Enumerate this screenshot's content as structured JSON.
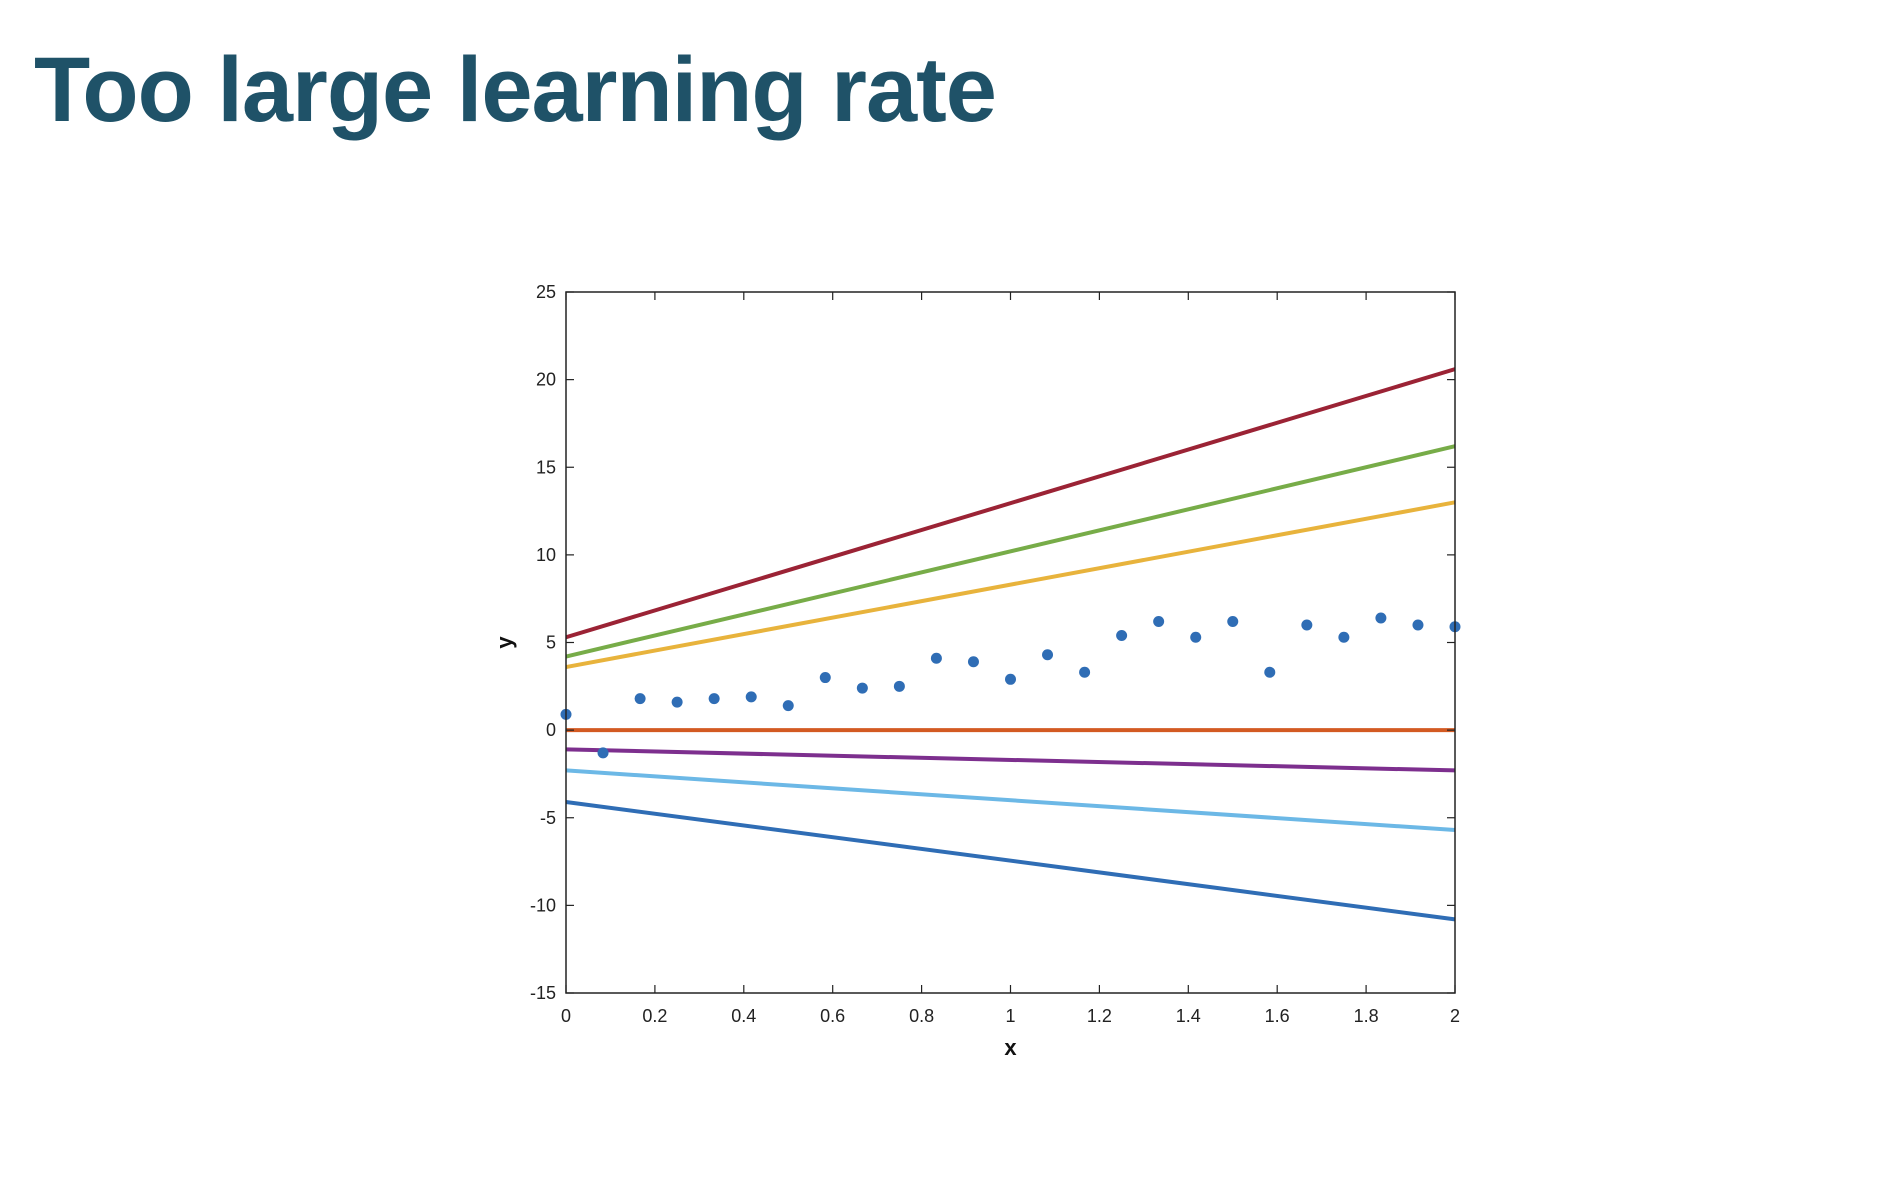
{
  "slide": {
    "title": "Too large learning rate"
  },
  "chart_data": {
    "type": "scatter",
    "xlabel": "x",
    "ylabel": "y",
    "xlim": [
      0,
      2
    ],
    "ylim": [
      -15,
      25
    ],
    "xticks": [
      0,
      0.2,
      0.4,
      0.6,
      0.8,
      1,
      1.2,
      1.4,
      1.6,
      1.8,
      2
    ],
    "yticks": [
      -15,
      -10,
      -5,
      0,
      5,
      10,
      15,
      20,
      25
    ],
    "grid": false,
    "points": {
      "color": "#2f6db5",
      "x": [
        0,
        0.0833,
        0.1667,
        0.25,
        0.3333,
        0.4167,
        0.5,
        0.5833,
        0.6667,
        0.75,
        0.8333,
        0.9167,
        1.0,
        1.0833,
        1.1667,
        1.25,
        1.3333,
        1.4167,
        1.5,
        1.5833,
        1.6667,
        1.75,
        1.8333,
        1.9167,
        2.0
      ],
      "y": [
        0.9,
        -1.3,
        1.8,
        1.6,
        1.8,
        1.9,
        1.4,
        3.0,
        2.4,
        2.5,
        4.1,
        3.9,
        2.9,
        4.3,
        3.3,
        5.4,
        6.2,
        5.3,
        6.2,
        3.3,
        6.0,
        5.3,
        6.4,
        6.0,
        5.9
      ]
    },
    "lines": [
      {
        "x": [
          0,
          2
        ],
        "y": [
          5.3,
          20.6
        ],
        "color": "#9b2335"
      },
      {
        "x": [
          0,
          2
        ],
        "y": [
          4.2,
          16.2
        ],
        "color": "#77ac48"
      },
      {
        "x": [
          0,
          2
        ],
        "y": [
          3.6,
          13.0
        ],
        "color": "#e8b33c"
      },
      {
        "x": [
          0,
          2
        ],
        "y": [
          0,
          0
        ],
        "color": "#d35a22"
      },
      {
        "x": [
          0,
          2
        ],
        "y": [
          -1.1,
          -2.3
        ],
        "color": "#7d2f8e"
      },
      {
        "x": [
          0,
          2
        ],
        "y": [
          -2.3,
          -5.7
        ],
        "color": "#6cb8e6"
      },
      {
        "x": [
          0,
          2
        ],
        "y": [
          -4.1,
          -10.8
        ],
        "color": "#2f6db5"
      }
    ]
  }
}
